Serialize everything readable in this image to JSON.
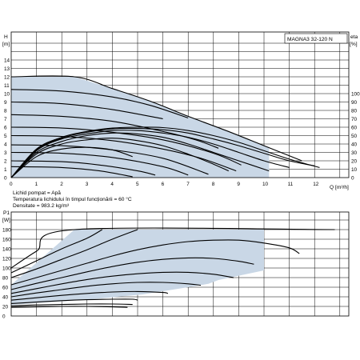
{
  "chart_data": [
    {
      "type": "line",
      "model": "MAGNA3 32-120 N",
      "ylabel": "H",
      "yunit": "[m]",
      "y2label": "eta",
      "y2unit": "[%]",
      "xlabel": "Q",
      "xunit": "[m³/h]",
      "xlim": [
        0,
        13
      ],
      "ylim": [
        0,
        14
      ],
      "y2lim": [
        0,
        100
      ],
      "xticks": [
        "0",
        "1",
        "2",
        "3",
        "4",
        "5",
        "6",
        "7",
        "8",
        "9",
        "10",
        "11",
        "12"
      ],
      "yticks": [
        "0",
        "1",
        "2",
        "3",
        "4",
        "5",
        "6",
        "7",
        "8",
        "9",
        "10",
        "11",
        "12",
        "13",
        "14"
      ],
      "y2ticks": [
        "0",
        "10",
        "20",
        "30",
        "40",
        "50",
        "60",
        "70",
        "80",
        "90",
        "100"
      ],
      "grid": true,
      "operating_region": [
        [
          0,
          12
        ],
        [
          2.5,
          12
        ],
        [
          4,
          10.6
        ],
        [
          5.5,
          9.1
        ],
        [
          7,
          7.3
        ],
        [
          8.5,
          5.6
        ],
        [
          10.2,
          3.6
        ],
        [
          10.2,
          0
        ],
        [
          0,
          0
        ]
      ],
      "head_curves": [
        {
          "values": [
            [
              0,
              12
            ],
            [
              2.5,
              12
            ],
            [
              4,
              10.6
            ],
            [
              5.5,
              9.1
            ],
            [
              7,
              7.3
            ],
            [
              8.5,
              5.6
            ],
            [
              10,
              3.8
            ],
            [
              11.5,
              2
            ]
          ]
        },
        {
          "values": [
            [
              0,
              10.5
            ],
            [
              2,
              10.3
            ],
            [
              4,
              9.6
            ],
            [
              5.5,
              8.6
            ],
            [
              7,
              7.1
            ]
          ]
        },
        {
          "values": [
            [
              0,
              9
            ],
            [
              2,
              8.8
            ],
            [
              4,
              8.1
            ],
            [
              6,
              7
            ]
          ]
        },
        {
          "values": [
            [
              0,
              7.5
            ],
            [
              2,
              7.3
            ],
            [
              4,
              6.7
            ],
            [
              6,
              5.5
            ],
            [
              7.3,
              4.5
            ],
            [
              8.2,
              3.5
            ]
          ]
        },
        {
          "values": [
            [
              0,
              6
            ],
            [
              2,
              5.9
            ],
            [
              4,
              5.4
            ],
            [
              6,
              4.5
            ],
            [
              8,
              2.9
            ],
            [
              9.1,
              1.5
            ]
          ]
        },
        {
          "values": [
            [
              0,
              5
            ],
            [
              2,
              4.9
            ],
            [
              4,
              4.4
            ],
            [
              6,
              3.4
            ],
            [
              7.5,
              2.3
            ],
            [
              8.9,
              0.8
            ]
          ]
        },
        {
          "values": [
            [
              0,
              3.9
            ],
            [
              2,
              3.8
            ],
            [
              4,
              3.3
            ],
            [
              6,
              2.3
            ],
            [
              7.8,
              0.4
            ]
          ]
        },
        {
          "values": [
            [
              0,
              3
            ],
            [
              2,
              2.9
            ],
            [
              4,
              2.4
            ],
            [
              6,
              1.3
            ],
            [
              7,
              0.3
            ]
          ]
        },
        {
          "values": [
            [
              0,
              2
            ],
            [
              2,
              1.9
            ],
            [
              3.5,
              1.5
            ],
            [
              5,
              0.8
            ],
            [
              5.7,
              0.3
            ]
          ]
        },
        {
          "values": [
            [
              0,
              1.3
            ],
            [
              2,
              1.2
            ],
            [
              3.5,
              0.8
            ],
            [
              4.8,
              0.1
            ]
          ]
        }
      ],
      "efficiency_curves": [
        {
          "values": [
            [
              0,
              0
            ],
            [
              1,
              34
            ],
            [
              2,
              48
            ],
            [
              3,
              55
            ],
            [
              4,
              59
            ],
            [
              5,
              60
            ],
            [
              6,
              59.5
            ],
            [
              7,
              56
            ],
            [
              8,
              50
            ],
            [
              9,
              42
            ],
            [
              10,
              32
            ],
            [
              11,
              22
            ],
            [
              12.2,
              12
            ]
          ]
        },
        {
          "values": [
            [
              0,
              0
            ],
            [
              1,
              33
            ],
            [
              2,
              47
            ],
            [
              3,
              54
            ],
            [
              4,
              58
            ],
            [
              5,
              58.5
            ],
            [
              6,
              57
            ],
            [
              7,
              53
            ],
            [
              8,
              46
            ],
            [
              9,
              38
            ],
            [
              10,
              29
            ],
            [
              11,
              20
            ],
            [
              12,
              14
            ]
          ]
        },
        {
          "values": [
            [
              0,
              0
            ],
            [
              1,
              32
            ],
            [
              2,
              46
            ],
            [
              3,
              52
            ],
            [
              4,
              56
            ],
            [
              5,
              56
            ],
            [
              6,
              53
            ],
            [
              7,
              48
            ],
            [
              8,
              40
            ],
            [
              9,
              30
            ],
            [
              10,
              20
            ],
            [
              11,
              12
            ]
          ]
        },
        {
          "values": [
            [
              0,
              0
            ],
            [
              1,
              30
            ],
            [
              2,
              43
            ],
            [
              3,
              50
            ],
            [
              4,
              53
            ],
            [
              5,
              52
            ],
            [
              6,
              48
            ],
            [
              7,
              40
            ],
            [
              8,
              30
            ],
            [
              9,
              20
            ],
            [
              10.2,
              8
            ]
          ]
        },
        {
          "values": [
            [
              0,
              0
            ],
            [
              1,
              28
            ],
            [
              2,
              40
            ],
            [
              3,
              45
            ],
            [
              4,
              47
            ],
            [
              5,
              44
            ],
            [
              6,
              38
            ],
            [
              7,
              28
            ],
            [
              8,
              16
            ],
            [
              8.6,
              8
            ]
          ]
        },
        {
          "values": [
            [
              0,
              0
            ],
            [
              1,
              25
            ],
            [
              2,
              34
            ],
            [
              3,
              36
            ],
            [
              4,
              33
            ],
            [
              4.8,
              25
            ]
          ]
        }
      ]
    },
    {
      "type": "line",
      "ylabel": "P1",
      "yunit": "[W]",
      "xlim": [
        0,
        13
      ],
      "ylim": [
        0,
        200
      ],
      "yticks": [
        "0",
        "20",
        "40",
        "60",
        "80",
        "100",
        "120",
        "140",
        "160",
        "180"
      ],
      "grid": true,
      "operating_region": [
        [
          0,
          23
        ],
        [
          0,
          65
        ],
        [
          2.5,
          180
        ],
        [
          10,
          180
        ],
        [
          10,
          95
        ],
        [
          8.2,
          75
        ],
        [
          7.8,
          67
        ],
        [
          7,
          60
        ],
        [
          5.2,
          45
        ],
        [
          3,
          34
        ],
        [
          1,
          27
        ]
      ],
      "power_curves": [
        {
          "values": [
            [
              0,
              100
            ],
            [
              1,
              135
            ],
            [
              2.5,
              180
            ],
            [
              12.8,
              180
            ]
          ]
        },
        {
          "values": [
            [
              0,
              90
            ],
            [
              1,
              115
            ],
            [
              2,
              140
            ],
            [
              3,
              162
            ],
            [
              3.6,
              180
            ]
          ]
        },
        {
          "values": [
            [
              0,
              80
            ],
            [
              1,
              98
            ],
            [
              2,
              118
            ],
            [
              3,
              138
            ],
            [
              4,
              160
            ],
            [
              5,
              180
            ]
          ]
        },
        {
          "values": [
            [
              0,
              65
            ],
            [
              1,
              80
            ],
            [
              2,
              95
            ],
            [
              3,
              110
            ],
            [
              4,
              125
            ],
            [
              5,
              138
            ],
            [
              6,
              148
            ],
            [
              7,
              155
            ],
            [
              8,
              158
            ],
            [
              9,
              158
            ],
            [
              10,
              152
            ],
            [
              11,
              142
            ],
            [
              11.4,
              130
            ]
          ]
        },
        {
          "values": [
            [
              0,
              55
            ],
            [
              1,
              68
            ],
            [
              2,
              80
            ],
            [
              3,
              92
            ],
            [
              4,
              103
            ],
            [
              5,
              112
            ],
            [
              6,
              118
            ],
            [
              7,
              121
            ],
            [
              8,
              120
            ],
            [
              9,
              114
            ],
            [
              9.6,
              108
            ]
          ]
        },
        {
          "values": [
            [
              0,
              47
            ],
            [
              1,
              57
            ],
            [
              2,
              67
            ],
            [
              3,
              76
            ],
            [
              4,
              83
            ],
            [
              5,
              88
            ],
            [
              6,
              91
            ],
            [
              7,
              91
            ],
            [
              8,
              87
            ],
            [
              8.8,
              80
            ]
          ]
        },
        {
          "values": [
            [
              0,
              40
            ],
            [
              1,
              48
            ],
            [
              2,
              55
            ],
            [
              3,
              62
            ],
            [
              4,
              67
            ],
            [
              5,
              70
            ],
            [
              6,
              70
            ],
            [
              7,
              67
            ],
            [
              7.5,
              64
            ]
          ]
        },
        {
          "values": [
            [
              0,
              33
            ],
            [
              1,
              38
            ],
            [
              2,
              43
            ],
            [
              3,
              47
            ],
            [
              4,
              50
            ],
            [
              5,
              51
            ],
            [
              6,
              49
            ],
            [
              6.2,
              47
            ]
          ]
        },
        {
          "values": [
            [
              0,
              26
            ],
            [
              1,
              29
            ],
            [
              2,
              32
            ],
            [
              3,
              34
            ],
            [
              4,
              35
            ],
            [
              4.8,
              35
            ],
            [
              5,
              33
            ]
          ]
        },
        {
          "values": [
            [
              0,
              21
            ],
            [
              1,
              23
            ],
            [
              2,
              24
            ],
            [
              3,
              25
            ],
            [
              4,
              25
            ],
            [
              4.8,
              24
            ]
          ]
        },
        {
          "values": [
            [
              0,
              18
            ],
            [
              1,
              19
            ],
            [
              2,
              20
            ],
            [
              3,
              20
            ],
            [
              4,
              19
            ],
            [
              4.6,
              18
            ]
          ]
        }
      ]
    }
  ],
  "notes": {
    "line1": "Lichid pompat = Apă",
    "line2": "Temperatura lichidului în timpul funcționării = 60 °C",
    "line3": "Densitate = 983.2 kg/m³"
  },
  "colors": {
    "region": "#c9d7e6",
    "curve": "#000000"
  }
}
